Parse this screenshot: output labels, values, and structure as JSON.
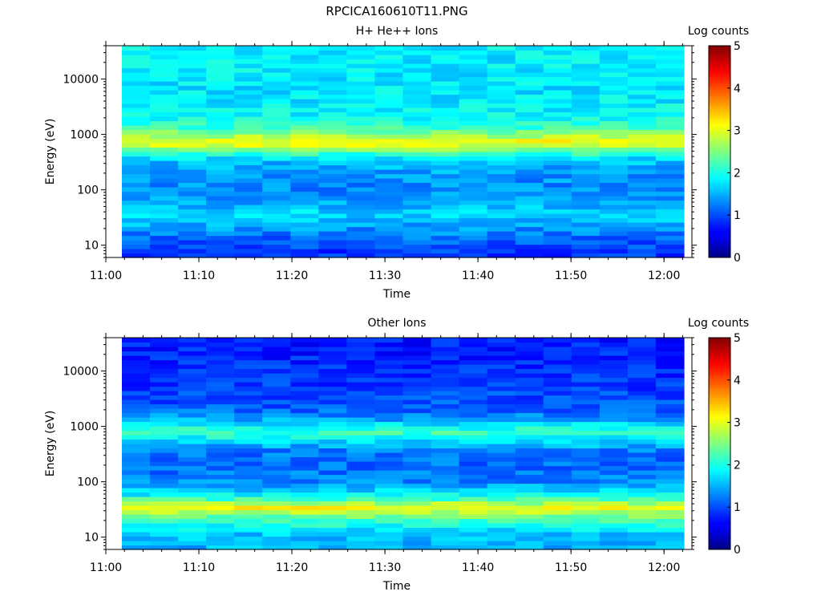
{
  "window": {
    "title": "RPCICA160610T11.PNG"
  },
  "chart_data": [
    {
      "type": "heatmap",
      "title": "H+ He++ Ions",
      "xlabel": "Time",
      "ylabel": "Energy (eV)",
      "xlim": [
        "11:00",
        "12:03"
      ],
      "xticks": [
        "11:00",
        "11:10",
        "11:20",
        "11:30",
        "11:40",
        "11:50",
        "12:00"
      ],
      "ylim": [
        6,
        40000
      ],
      "yscale": "log",
      "yticks": [
        "10",
        "100",
        "1000",
        "10000"
      ],
      "colorbar": {
        "label": "Log counts",
        "range": [
          0,
          5
        ],
        "ticks": [
          "0",
          "1",
          "2",
          "3",
          "4",
          "5"
        ],
        "colormap": "jet"
      },
      "time_bins": [
        "11:02",
        "11:05",
        "11:08",
        "11:11",
        "11:14",
        "11:18",
        "11:21",
        "11:24",
        "11:27",
        "11:30",
        "11:34",
        "11:37",
        "11:40",
        "11:43",
        "11:46",
        "11:50",
        "11:53",
        "11:56",
        "11:59",
        "12:02"
      ],
      "energy_profile": [
        {
          "energy": 30000,
          "log_counts": 1.8
        },
        {
          "energy": 15000,
          "log_counts": 1.8
        },
        {
          "energy": 8000,
          "log_counts": 1.75
        },
        {
          "energy": 4000,
          "log_counts": 1.8
        },
        {
          "energy": 2000,
          "log_counts": 1.9
        },
        {
          "energy": 1300,
          "log_counts": 2.2
        },
        {
          "energy": 950,
          "log_counts": 2.7
        },
        {
          "energy": 700,
          "log_counts": 3.2
        },
        {
          "energy": 520,
          "log_counts": 2.4
        },
        {
          "energy": 350,
          "log_counts": 1.6
        },
        {
          "energy": 200,
          "log_counts": 1.4
        },
        {
          "energy": 110,
          "log_counts": 1.3
        },
        {
          "energy": 60,
          "log_counts": 1.4
        },
        {
          "energy": 40,
          "log_counts": 1.7
        },
        {
          "energy": 25,
          "log_counts": 1.5
        },
        {
          "energy": 14,
          "log_counts": 1.15
        },
        {
          "energy": 8,
          "log_counts": 0.9
        }
      ]
    },
    {
      "type": "heatmap",
      "title": "Other Ions",
      "xlabel": "Time",
      "ylabel": "Energy (eV)",
      "xlim": [
        "11:00",
        "12:03"
      ],
      "xticks": [
        "11:00",
        "11:10",
        "11:20",
        "11:30",
        "11:40",
        "11:50",
        "12:00"
      ],
      "ylim": [
        6,
        40000
      ],
      "yscale": "log",
      "yticks": [
        "10",
        "100",
        "1000",
        "10000"
      ],
      "colorbar": {
        "label": "Log counts",
        "range": [
          0,
          5
        ],
        "ticks": [
          "0",
          "1",
          "2",
          "3",
          "4",
          "5"
        ],
        "colormap": "jet"
      },
      "time_bins": [
        "11:02",
        "11:05",
        "11:08",
        "11:11",
        "11:14",
        "11:18",
        "11:21",
        "11:24",
        "11:27",
        "11:30",
        "11:34",
        "11:37",
        "11:40",
        "11:43",
        "11:46",
        "11:50",
        "11:53",
        "11:56",
        "11:59",
        "12:02"
      ],
      "energy_profile": [
        {
          "energy": 30000,
          "log_counts": 0.75
        },
        {
          "energy": 15000,
          "log_counts": 0.8
        },
        {
          "energy": 8000,
          "log_counts": 0.85
        },
        {
          "energy": 4000,
          "log_counts": 0.95
        },
        {
          "energy": 2000,
          "log_counts": 1.1
        },
        {
          "energy": 1300,
          "log_counts": 1.5
        },
        {
          "energy": 800,
          "log_counts": 2.2
        },
        {
          "energy": 550,
          "log_counts": 1.7
        },
        {
          "energy": 350,
          "log_counts": 1.2
        },
        {
          "energy": 200,
          "log_counts": 1.15
        },
        {
          "energy": 100,
          "log_counts": 1.3
        },
        {
          "energy": 55,
          "log_counts": 1.9
        },
        {
          "energy": 35,
          "log_counts": 3.1
        },
        {
          "energy": 22,
          "log_counts": 2.3
        },
        {
          "energy": 12,
          "log_counts": 1.6
        },
        {
          "energy": 8,
          "log_counts": 1.5
        }
      ]
    }
  ]
}
